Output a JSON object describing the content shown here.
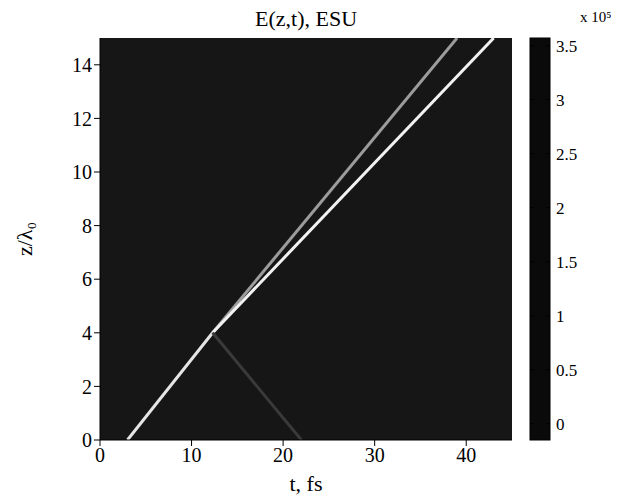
{
  "chart_data": {
    "type": "line",
    "title": "E(z,t), ESU",
    "x_label": "t, fs",
    "y_label": "z/λ₀",
    "xlim": [
      0,
      45
    ],
    "xticks": [
      0,
      10,
      20,
      30,
      40
    ],
    "ylim": [
      0,
      15
    ],
    "yticks": [
      0,
      2,
      4,
      6,
      8,
      10,
      12,
      14
    ],
    "grid": false,
    "series": [
      {
        "color": "#e6e6e6",
        "x": [
          3,
          12.3
        ],
        "values": [
          0,
          4
        ]
      },
      {
        "color": "#9c9c9c",
        "x": [
          12.3,
          39
        ],
        "values": [
          4,
          15
        ]
      },
      {
        "color": "#f2f2f2",
        "x": [
          12.3,
          43
        ],
        "values": [
          4,
          15
        ]
      },
      {
        "color": "#3a3a3a",
        "x": [
          12.3,
          22
        ],
        "values": [
          4,
          0
        ]
      }
    ],
    "colorbar": {
      "label": "x 10⁵",
      "range": [
        -0.15,
        3.57
      ],
      "ticks": [
        0,
        0.5,
        1,
        1.5,
        2,
        2.5,
        3,
        3.5
      ],
      "colormap": [
        {
          "value": -0.15,
          "color": "#0a0a0a"
        },
        {
          "value": 0.5,
          "color": "#3c3c3c"
        },
        {
          "value": 1.5,
          "color": "#a0a0a0"
        },
        {
          "value": 2.2,
          "color": "#ffffff"
        },
        {
          "value": 3,
          "color": "#909090"
        },
        {
          "value": 3.57,
          "color": "#303030"
        }
      ]
    }
  }
}
